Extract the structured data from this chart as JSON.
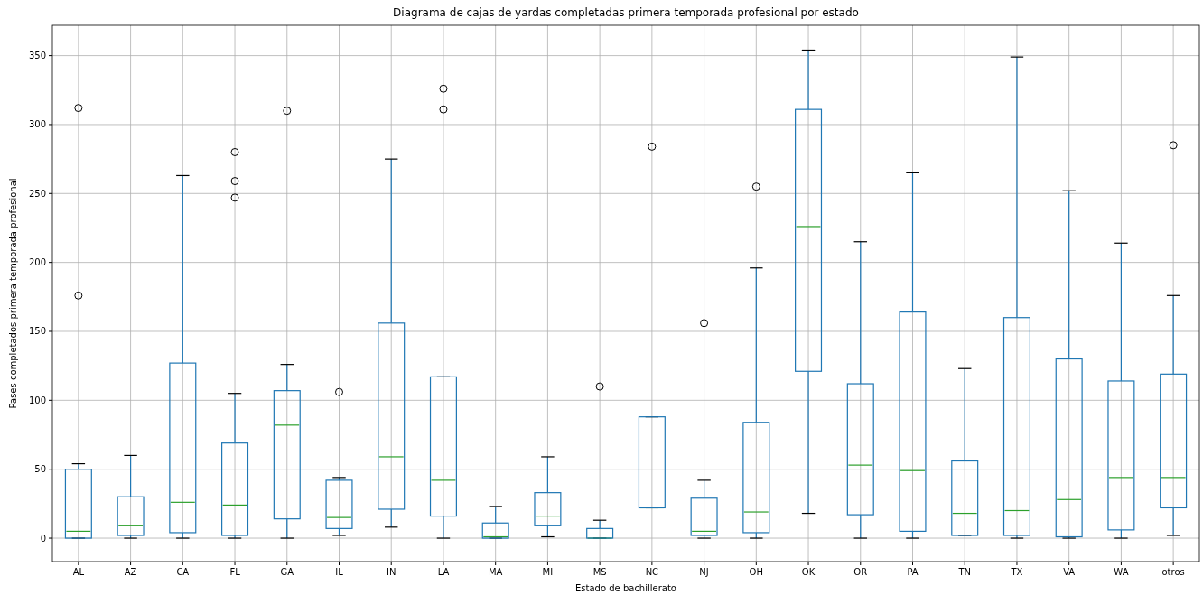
{
  "chart_data": {
    "type": "box",
    "title": "Diagrama de cajas de yardas completadas primera temporada profesional por estado",
    "xlabel": "Estado de bachillerato",
    "ylabel": "Pases completados primera temporada profesional",
    "categories": [
      "AL",
      "AZ",
      "CA",
      "FL",
      "GA",
      "IL",
      "IN",
      "LA",
      "MA",
      "MI",
      "MS",
      "NC",
      "NJ",
      "OH",
      "OK",
      "OR",
      "PA",
      "TN",
      "TX",
      "VA",
      "WA",
      "otros"
    ],
    "color": "#1f77b4",
    "grid": true,
    "ylim": [
      -17,
      372
    ],
    "yticks": [
      0,
      50,
      100,
      150,
      200,
      250,
      300,
      350
    ],
    "boxes": [
      {
        "low": 0,
        "q1": 0,
        "median": 5,
        "q3": 50,
        "high": 54,
        "outliers": [
          176,
          312
        ]
      },
      {
        "low": 0,
        "q1": 2,
        "median": 9,
        "q3": 30,
        "high": 60
      },
      {
        "low": 0,
        "q1": 4,
        "median": 26,
        "q3": 127,
        "high": 263
      },
      {
        "low": 0,
        "q1": 2,
        "median": 24,
        "q3": 69,
        "high": 105,
        "outliers": [
          247,
          259,
          280
        ]
      },
      {
        "low": 0,
        "q1": 14,
        "median": 82,
        "q3": 107,
        "high": 126,
        "outliers": [
          310
        ]
      },
      {
        "low": 2,
        "q1": 7,
        "median": 15,
        "q3": 42,
        "high": 44,
        "outliers": [
          106
        ]
      },
      {
        "low": 8,
        "q1": 21,
        "median": 59,
        "q3": 156,
        "high": 275
      },
      {
        "low": 0,
        "q1": 16,
        "median": 42,
        "q3": 117,
        "high": 117,
        "outliers": [
          311,
          326
        ]
      },
      {
        "low": 0,
        "q1": 0,
        "median": 1,
        "q3": 11,
        "high": 23
      },
      {
        "low": 1,
        "q1": 9,
        "median": 16,
        "q3": 33,
        "high": 59
      },
      {
        "low": 0,
        "q1": 0,
        "median": 0,
        "q3": 7,
        "high": 13,
        "outliers": [
          110
        ]
      },
      {
        "low": 22,
        "q1": 22,
        "median": 22,
        "q3": 88,
        "high": 88,
        "outliers": [
          284
        ]
      },
      {
        "low": 0,
        "q1": 2,
        "median": 5,
        "q3": 29,
        "high": 42,
        "outliers": [
          156
        ]
      },
      {
        "low": 0,
        "q1": 4,
        "median": 19,
        "q3": 84,
        "high": 196,
        "outliers": [
          255
        ]
      },
      {
        "low": 18,
        "q1": 121,
        "median": 226,
        "q3": 311,
        "high": 354
      },
      {
        "low": 0,
        "q1": 17,
        "median": 53,
        "q3": 112,
        "high": 215
      },
      {
        "low": 0,
        "q1": 5,
        "median": 49,
        "q3": 164,
        "high": 265
      },
      {
        "low": 2,
        "q1": 2,
        "median": 18,
        "q3": 56,
        "high": 123
      },
      {
        "low": 0,
        "q1": 2,
        "median": 20,
        "q3": 160,
        "high": 349
      },
      {
        "low": 0,
        "q1": 1,
        "median": 28,
        "q3": 130,
        "high": 252
      },
      {
        "low": 0,
        "q1": 6,
        "median": 44,
        "q3": 114,
        "high": 214
      },
      {
        "low": 2,
        "q1": 22,
        "median": 44,
        "q3": 119,
        "high": 176,
        "outliers": [
          285
        ]
      }
    ]
  }
}
